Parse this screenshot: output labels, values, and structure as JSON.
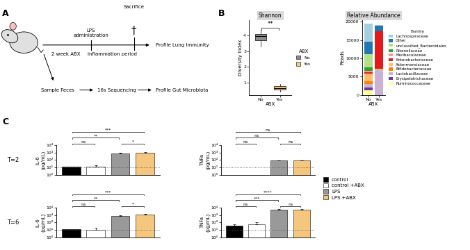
{
  "panel_labels": [
    "A",
    "B",
    "C"
  ],
  "diagram": {
    "timeline": {
      "start": "2 week ABX",
      "event": "LPS\nadministration",
      "period": "Inflammation period",
      "end_event": "Sacrifice",
      "end_icon": "†",
      "outcome": "Profile Lung Immunity"
    },
    "branch": [
      "Sample Feces",
      "16s Sequencing",
      "Profile Gut Microbiota"
    ]
  },
  "chart_data": [
    {
      "type": "box",
      "title": "Shannon",
      "x_label": "ABX",
      "y_label": "Diversity Index",
      "categories": [
        "No",
        "Yes"
      ],
      "colors": [
        "#8c8c8c",
        "#f6c77d"
      ],
      "boxes": [
        {
          "whislo": 3.3,
          "q1": 3.7,
          "median": 3.95,
          "q3": 4.1,
          "whishi": 4.35
        },
        {
          "whislo": 0.4,
          "q1": 0.55,
          "median": 0.65,
          "q3": 0.75,
          "whishi": 0.9
        }
      ],
      "ylim": [
        0.2,
        5.0
      ],
      "yticks": [
        1,
        2,
        3,
        4
      ],
      "significance": [
        {
          "between": [
            0,
            1
          ],
          "label": "**"
        }
      ],
      "legend": "center left",
      "legend_title": "ABX"
    },
    {
      "type": "bar",
      "stacked": true,
      "title": "Relative Abundance",
      "x_label": "ABX",
      "y_label": "Reads",
      "categories": [
        "No",
        "Yes"
      ],
      "series": [
        {
          "name": "Lachnospiraceae",
          "color": "#a6cee3",
          "values": [
            5000,
            300
          ]
        },
        {
          "name": "Other",
          "color": "#1f78b4",
          "values": [
            3500,
            1400
          ]
        },
        {
          "name": "unclassified_Bacteroidales",
          "color": "#b2df8a",
          "values": [
            3500,
            100
          ]
        },
        {
          "name": "Rikenellaceae",
          "color": "#33a02c",
          "values": [
            900,
            0
          ]
        },
        {
          "name": "Muribaculaceae",
          "color": "#fb9a99",
          "values": [
            500,
            0
          ]
        },
        {
          "name": "Enterobacteriaceae",
          "color": "#e31a1c",
          "values": [
            300,
            10300
          ]
        },
        {
          "name": "Akkermansiaceae",
          "color": "#fdbf6f",
          "values": [
            2200,
            300
          ]
        },
        {
          "name": "Bifidobacteriaceae",
          "color": "#ff7f00",
          "values": [
            700,
            0
          ]
        },
        {
          "name": "Lactobacillaceae",
          "color": "#cab2d6",
          "values": [
            1000,
            6800
          ]
        },
        {
          "name": "Erysipelotrichaceae",
          "color": "#6a3d9a",
          "values": [
            700,
            0
          ]
        },
        {
          "name": "Ruminococcaceae",
          "color": "#ffff99",
          "values": [
            1300,
            0
          ]
        }
      ],
      "ylim": [
        0,
        20500
      ],
      "yticks": [
        0,
        5000,
        10000,
        15000,
        20000
      ],
      "legend": "center left",
      "legend_title": "Family"
    },
    {
      "type": "bar",
      "log": "y",
      "row_label": "T=2",
      "y_label": "IL-6\n(pg/mL)",
      "categories": [
        "control",
        "control +ABX",
        "LPS",
        "LPS +ABX"
      ],
      "colors": [
        "#000000",
        "#ffffff",
        "#999999",
        "#f5c77e"
      ],
      "values": [
        12,
        12,
        700,
        900
      ],
      "errors": [
        null,
        8,
        200,
        250
      ],
      "detection_limit": 10,
      "ylim": [
        1,
        10000
      ],
      "yticks": [
        {
          "value": 1,
          "label": "10⁰"
        },
        {
          "value": 10,
          "label": "10¹"
        },
        {
          "value": 100,
          "label": "10²"
        },
        {
          "value": 1000,
          "label": "10³"
        },
        {
          "value": 10000,
          "label": "10⁴"
        }
      ],
      "tick_labels": "y",
      "significance": [
        {
          "between": [
            0,
            1
          ],
          "label": "ns"
        },
        {
          "between": [
            2,
            3
          ],
          "label": "*"
        },
        {
          "between": [
            0,
            2
          ],
          "label": "**"
        },
        {
          "between": [
            0,
            3
          ],
          "label": "***"
        }
      ]
    },
    {
      "type": "bar",
      "log": "y",
      "y_label": "TNFa\n(pg/mL)",
      "categories": [
        "control",
        "control +ABX",
        "LPS",
        "LPS +ABX"
      ],
      "colors": [
        "#000000",
        "#ffffff",
        "#999999",
        "#f5c77e"
      ],
      "values": [
        null,
        null,
        80,
        80
      ],
      "errors": [
        null,
        null,
        10,
        10
      ],
      "detection_limit": 10,
      "ylim": [
        1,
        10000
      ],
      "yticks": [
        {
          "value": 1,
          "label": "10⁰"
        },
        {
          "value": 10,
          "label": "10¹"
        },
        {
          "value": 100,
          "label": "10²"
        },
        {
          "value": 1000,
          "label": "10³"
        },
        {
          "value": 10000,
          "label": "10⁴"
        }
      ],
      "tick_labels": "y",
      "significance": [
        {
          "between": [
            0,
            1
          ],
          "label": "ns"
        },
        {
          "between": [
            2,
            3
          ],
          "label": "ns"
        },
        {
          "between": [
            0,
            2
          ],
          "label": "ns"
        },
        {
          "between": [
            0,
            3
          ],
          "label": "ns"
        }
      ],
      "legend": "center left"
    },
    {
      "type": "bar",
      "log": "y",
      "row_label": "T=6",
      "y_label": "IL-6\n(pg/mL)",
      "categories": [
        "control",
        "control +ABX",
        "LPS",
        "LPS +ABX"
      ],
      "colors": [
        "#000000",
        "#ffffff",
        "#999999",
        "#f5c77e"
      ],
      "values": [
        12,
        10,
        800,
        1100
      ],
      "errors": [
        null,
        10,
        150,
        300
      ],
      "detection_limit": 10,
      "ylim": [
        1,
        10000
      ],
      "yticks": [
        {
          "value": 1,
          "label": "10⁰"
        },
        {
          "value": 10,
          "label": "10¹"
        },
        {
          "value": 100,
          "label": "10²"
        },
        {
          "value": 1000,
          "label": "10³"
        },
        {
          "value": 10000,
          "label": "10⁴"
        }
      ],
      "tick_labels": "y",
      "significance": [
        {
          "between": [
            0,
            1
          ],
          "label": "ns"
        },
        {
          "between": [
            2,
            3
          ],
          "label": "*"
        },
        {
          "between": [
            0,
            2
          ],
          "label": "**"
        },
        {
          "between": [
            0,
            3
          ],
          "label": "***"
        }
      ]
    },
    {
      "type": "bar",
      "log": "y",
      "y_label": "TNFa\n(pg/mL)",
      "categories": [
        "control",
        "control +ABX",
        "LPS",
        "LPS +ABX"
      ],
      "colors": [
        "#000000",
        "#ffffff",
        "#999999",
        "#f5c77e"
      ],
      "values": [
        40,
        60,
        5000,
        5000
      ],
      "errors": [
        15,
        40,
        1500,
        1500
      ],
      "detection_limit": 10,
      "ylim": [
        1,
        10000
      ],
      "yticks": [
        {
          "value": 1,
          "label": "10⁰"
        },
        {
          "value": 10,
          "label": "10¹"
        },
        {
          "value": 100,
          "label": "10²"
        },
        {
          "value": 1000,
          "label": "10³"
        },
        {
          "value": 10000,
          "label": "10⁴"
        }
      ],
      "tick_labels": "y",
      "significance": [
        {
          "between": [
            0,
            1
          ],
          "label": "ns"
        },
        {
          "between": [
            2,
            3
          ],
          "label": "ns"
        },
        {
          "between": [
            0,
            2
          ],
          "label": "***"
        },
        {
          "between": [
            0,
            3
          ],
          "label": "****"
        }
      ]
    }
  ]
}
